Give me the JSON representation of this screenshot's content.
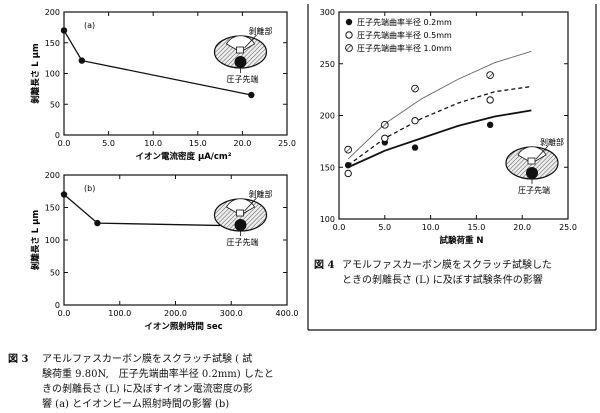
{
  "chart_data": [
    {
      "type": "line",
      "panel_label": "(a)",
      "xlabel": "イオン電流密度 μA/cm²",
      "ylabel": "剝離長さ L μm",
      "xlim": [
        0,
        25
      ],
      "ylim": [
        0,
        200
      ],
      "xticks": [
        "0.0",
        "5.0",
        "10.0",
        "15.0",
        "20.0",
        "25.0"
      ],
      "yticks": [
        "0",
        "50",
        "100",
        "150",
        "200"
      ],
      "series": [
        {
          "x": [
            0,
            2,
            21
          ],
          "y": [
            170,
            121,
            65
          ]
        }
      ],
      "inset": {
        "label": "剝離部",
        "tip_label": "圧子先端"
      }
    },
    {
      "type": "line",
      "panel_label": "(b)",
      "xlabel": "イオン照射時間 sec",
      "ylabel": "剝離長さ L μm",
      "xlim": [
        0,
        400
      ],
      "ylim": [
        0,
        200
      ],
      "xticks": [
        "0.0",
        "100.0",
        "200.0",
        "300.0",
        "400.0"
      ],
      "yticks": [
        "0",
        "50",
        "100",
        "150",
        "200"
      ],
      "series": [
        {
          "x": [
            0,
            60,
            300
          ],
          "y": [
            170,
            126,
            122
          ]
        }
      ],
      "inset": {
        "label": "剝離部",
        "tip_label": "圧子先端"
      }
    },
    {
      "type": "scatter",
      "xlabel": "試験荷重 N",
      "ylabel": "",
      "xlim": [
        0,
        25
      ],
      "ylim": [
        100,
        300
      ],
      "xticks": [
        "0.0",
        "5.0",
        "10.0",
        "15.0",
        "20.0",
        "25.0"
      ],
      "yticks": [
        "100",
        "150",
        "200",
        "250",
        "300"
      ],
      "series": [
        {
          "name": "圧子先端曲率半径 0.2mm",
          "marker": "filled",
          "x": [
            1,
            5,
            8.3,
            16.5
          ],
          "y": [
            152,
            174,
            169,
            191
          ],
          "fit": [
            150,
            166,
            178,
            190,
            199,
            205
          ]
        },
        {
          "name": "圧子先端曲率半径 0.5mm",
          "marker": "open",
          "x": [
            1,
            5,
            8.3,
            16.5
          ],
          "y": [
            144,
            178,
            195,
            215
          ],
          "fit": [
            152,
            178,
            197,
            212,
            223,
            228
          ]
        },
        {
          "name": "圧子先端曲率半径 1.0mm",
          "marker": "hatched",
          "x": [
            1,
            5,
            8.3,
            16.5
          ],
          "y": [
            167,
            191,
            226,
            239
          ],
          "fit": [
            158,
            192,
            216,
            235,
            251,
            262
          ]
        }
      ],
      "inset": {
        "label": "剝離部",
        "tip_label": "圧子先端"
      }
    }
  ],
  "captions": {
    "fig3_number": "図 3",
    "fig3_lines": [
      "アモルファスカーボン膜をスクラッチ試験 ( 試",
      "験荷重 9.80N,　圧子先端曲率半径 0.2mm) したと",
      "きの剝離長さ (L) に及ぼすイオン電流密度の影",
      "響 (a) とイオンビーム照射時間の影響 (b)"
    ],
    "fig4_number": "図 4",
    "fig4_lines": [
      "アモルファスカーボン膜をスクラッチ試験した",
      "ときの剝離長さ (L) に及ぼす試験条件の影響"
    ]
  }
}
